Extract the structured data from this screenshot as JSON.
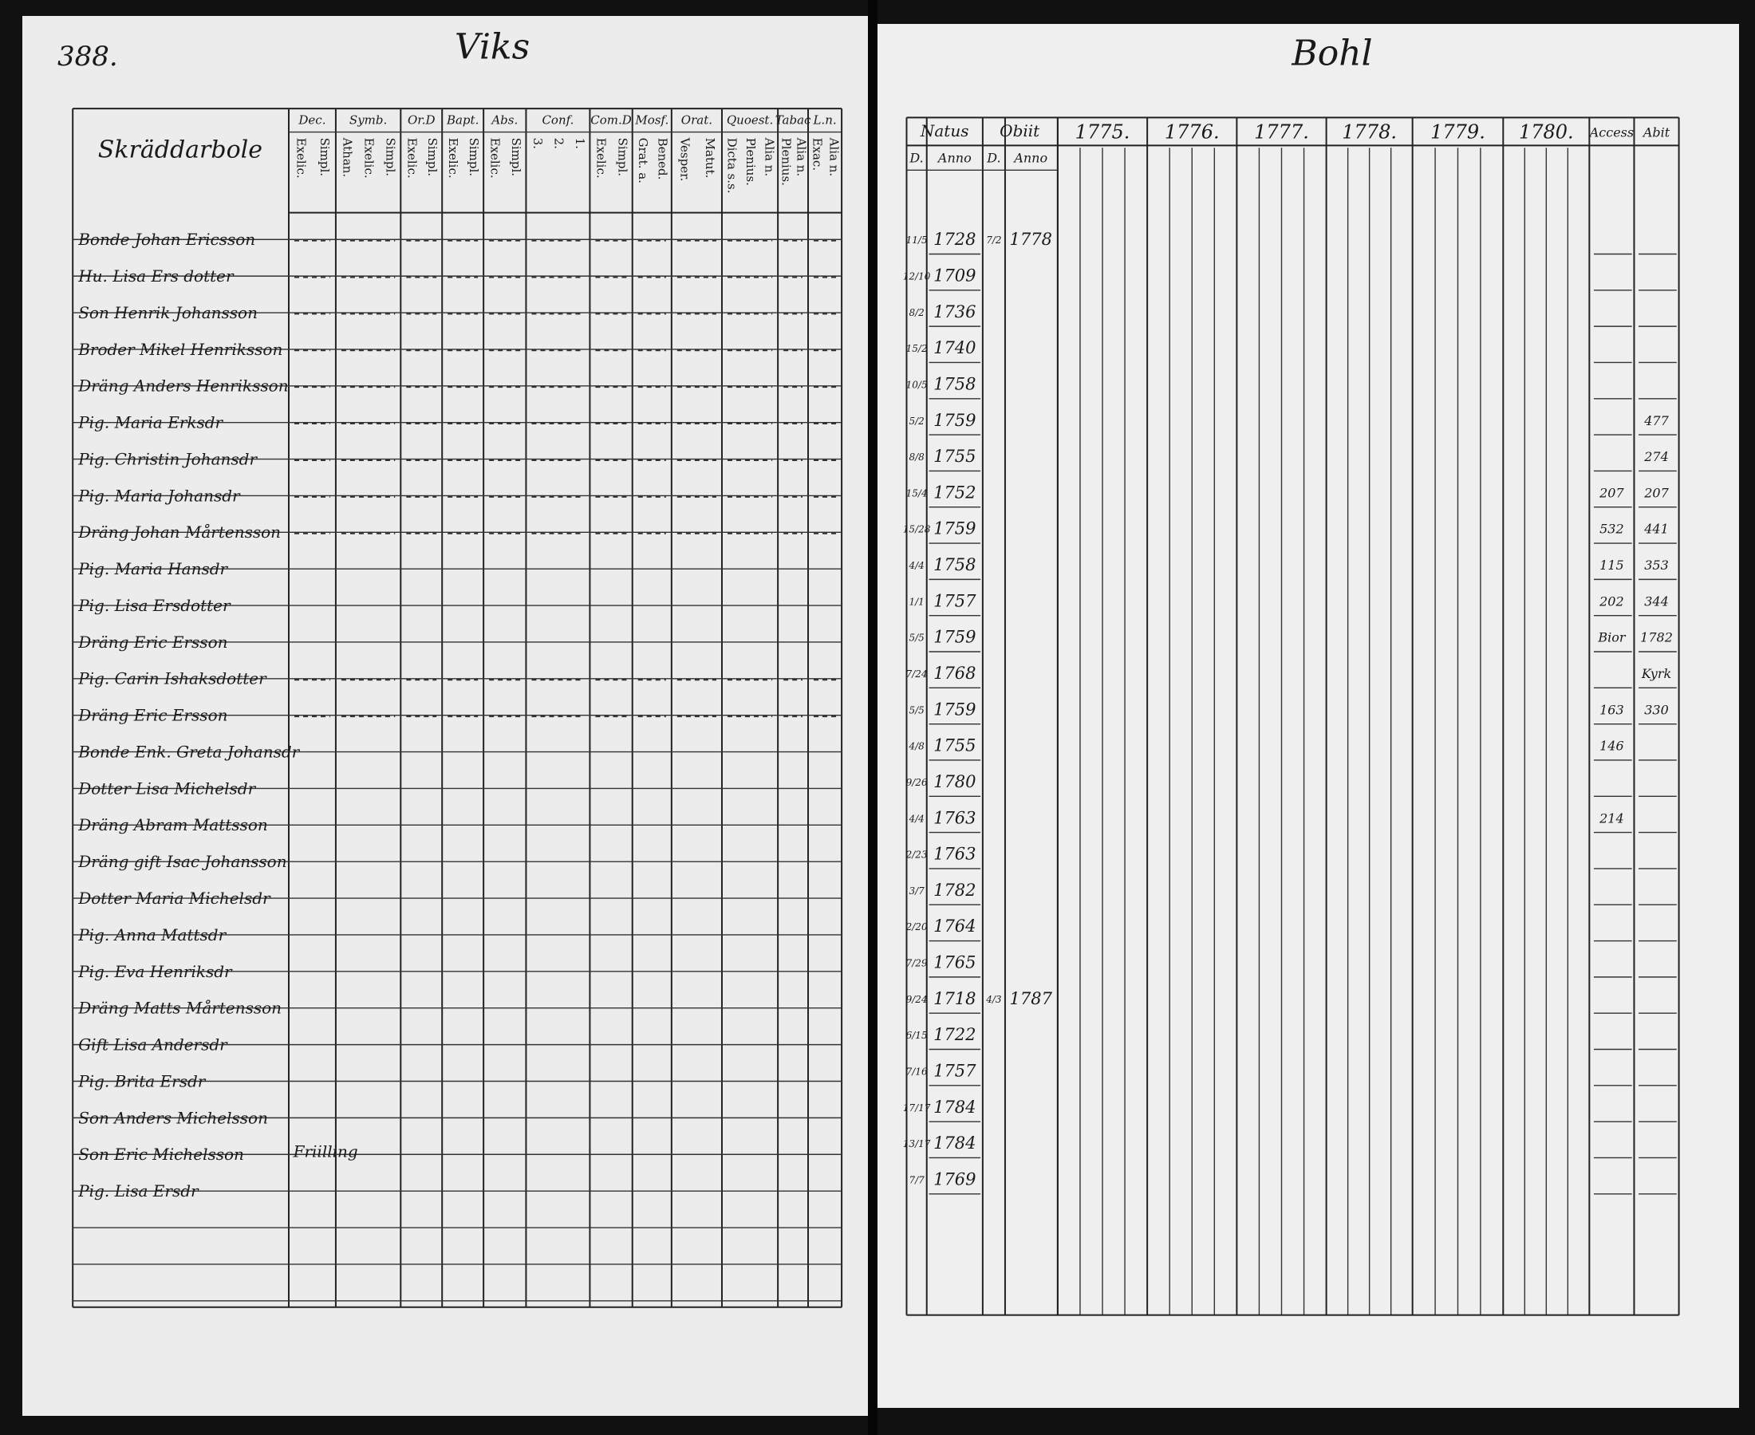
{
  "page_number": "388.",
  "left": {
    "title": "Viks",
    "section": "Skräddarbole",
    "columns": [
      {
        "label": "Dec.",
        "sub": [
          "Exelic.",
          "Simpl."
        ]
      },
      {
        "label": "Symb.",
        "sub": [
          "Athan.",
          "Exelic.",
          "Simpl."
        ]
      },
      {
        "label": "Or.D",
        "sub": [
          "Exelic.",
          "Simpl."
        ]
      },
      {
        "label": "Bapt.",
        "sub": [
          "Exelic.",
          "Simpl."
        ]
      },
      {
        "label": "Abs.",
        "sub": [
          "Exelic.",
          "Simpl."
        ]
      },
      {
        "label": "Conf.",
        "sub": [
          "3.",
          "2.",
          "1."
        ]
      },
      {
        "label": "Com.D",
        "sub": [
          "Exelic.",
          "Simpl."
        ]
      },
      {
        "label": "Mosf.",
        "sub": [
          "Grat. a.",
          "Bened."
        ]
      },
      {
        "label": "Orat.",
        "sub": [
          "Vesper.",
          "Matut."
        ]
      },
      {
        "label": "Quoest.",
        "sub": [
          "Dicta s.s.",
          "Plenius.",
          "Alia n."
        ]
      },
      {
        "label": "Tabac",
        "sub": [
          "Plenius.",
          "Alia n."
        ]
      },
      {
        "label": "L.n.",
        "sub": [
          "Exac.",
          "Alia n."
        ]
      }
    ],
    "rows": [
      "Bonde Johan Ericsson",
      "Hu. Lisa Ers dotter",
      "Son Henrik Johansson",
      "Broder Mikel Henriksson",
      "Dräng Anders Henriksson",
      "Pig. Maria Erksdr",
      "Pig. Christin Johansdr",
      "Pig. Maria Johansdr",
      "Dräng Johan Mårtensson",
      "Pig. Maria Hansdr",
      "Pig. Lisa Ersdotter",
      "Dräng Eric Ersson",
      "Pig. Carin Ishaksdotter",
      "Dräng Eric Ersson",
      "Bonde Enk. Greta Johansdr",
      "Dotter Lisa Michelsdr",
      "Dräng Abram Mattsson",
      "Dräng gift Isac Johansson",
      "Dotter Maria Michelsdr",
      "Pig. Anna Mattsdr",
      "Pig. Eva Henriksdr",
      "Dräng Matts Mårtensson",
      "Gift Lisa Andersdr",
      "Pig. Brita Ersdr",
      "Son Anders Michelsson",
      "Son Eric Michelsson",
      "Pig. Lisa Ersdr"
    ],
    "note": "Friilling"
  },
  "right": {
    "title": "Bohl",
    "natus": "Natus",
    "obiit": "Obiit",
    "day": "D.",
    "anno": "Anno",
    "years": [
      "1775.",
      "1776.",
      "1777.",
      "1778.",
      "1779.",
      "1780."
    ],
    "access": "Access",
    "abit": "Abit",
    "rows": [
      {
        "d": "11/5",
        "anno": "1728",
        "obiit_d": "7/2",
        "obiit_anno": "1778"
      },
      {
        "d": "12/10",
        "anno": "1709"
      },
      {
        "d": "8/2",
        "anno": "1736"
      },
      {
        "d": "15/2",
        "anno": "1740"
      },
      {
        "d": "10/5",
        "anno": "1758"
      },
      {
        "d": "5/2",
        "anno": "1759",
        "abit": "477"
      },
      {
        "d": "8/8",
        "anno": "1755",
        "abit": "274"
      },
      {
        "d": "15/4",
        "anno": "1752",
        "access": "207",
        "abit": "207"
      },
      {
        "d": "15/28",
        "anno": "1759",
        "access": "532",
        "abit": "441"
      },
      {
        "d": "4/4",
        "anno": "1758",
        "access": "115",
        "abit": "353"
      },
      {
        "d": "1/1",
        "anno": "1757",
        "access": "202",
        "abit": "344"
      },
      {
        "d": "5/5",
        "anno": "1759",
        "access": "Bior",
        "abit": "1782"
      },
      {
        "d": "7/24",
        "anno": "1768",
        "abit": "Kyrk"
      },
      {
        "d": "5/5",
        "anno": "1759",
        "access": "163",
        "abit": "330"
      },
      {
        "d": "4/8",
        "anno": "1755",
        "access": "146"
      },
      {
        "d": "9/26",
        "anno": "1780"
      },
      {
        "d": "4/4",
        "anno": "1763",
        "access": "214"
      },
      {
        "d": "2/23",
        "anno": "1763"
      },
      {
        "d": "3/7",
        "anno": "1782"
      },
      {
        "d": "2/20",
        "anno": "1764"
      },
      {
        "d": "7/29",
        "anno": "1765"
      },
      {
        "d": "9/24",
        "anno": "1718",
        "obiit_d": "4/3",
        "obiit_anno": "1787"
      },
      {
        "d": "6/15",
        "anno": "1722"
      },
      {
        "d": "7/16",
        "anno": "1757"
      },
      {
        "d": "17/17",
        "anno": "1784"
      },
      {
        "d": "13/17",
        "anno": "1784"
      },
      {
        "d": "7/7",
        "anno": "1769"
      }
    ]
  }
}
